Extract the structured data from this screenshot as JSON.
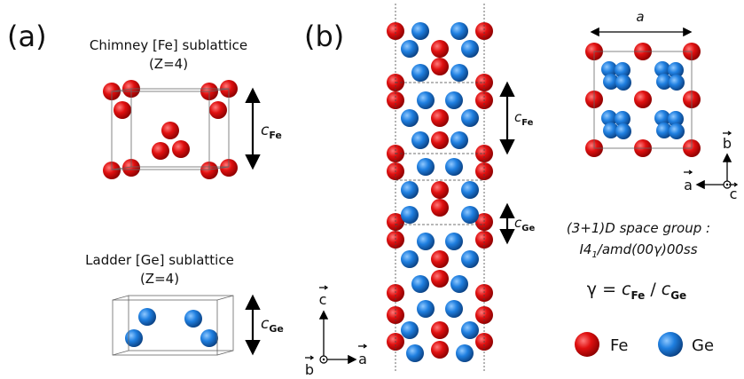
{
  "panel_a": {
    "label": "(a)",
    "chimney": {
      "title": "Chimney [Fe] sublattice",
      "z": "(Z=4)",
      "axis_symbol": "c",
      "axis_subscript": "Fe"
    },
    "ladder": {
      "title": "Ladder [Ge] sublattice",
      "z": "(Z=4)",
      "axis_symbol": "c",
      "axis_subscript": "Ge"
    },
    "axes": {
      "c": "c",
      "a": "a",
      "b": "b"
    }
  },
  "panel_b": {
    "label": "(b)",
    "chimney_axis": {
      "symbol": "c",
      "subscript": "Fe"
    },
    "ladder_axis": {
      "symbol": "c",
      "subscript": "Ge"
    },
    "lattice_parameter": "a",
    "axes": {
      "b": "b",
      "a": "a",
      "c": "c"
    },
    "space_group": {
      "line1": "(3+1)D space group :",
      "symbol_main": "I4",
      "symbol_sub": "1",
      "symbol_rest": "/amd(00γ)00ss"
    },
    "ratio": {
      "gamma": "γ =",
      "num_symbol": "c",
      "num_subscript": "Fe",
      "slash": "/",
      "den_symbol": "c",
      "den_subscript": "Ge"
    },
    "legend": [
      {
        "label": "Fe"
      },
      {
        "label": "Ge"
      }
    ]
  }
}
